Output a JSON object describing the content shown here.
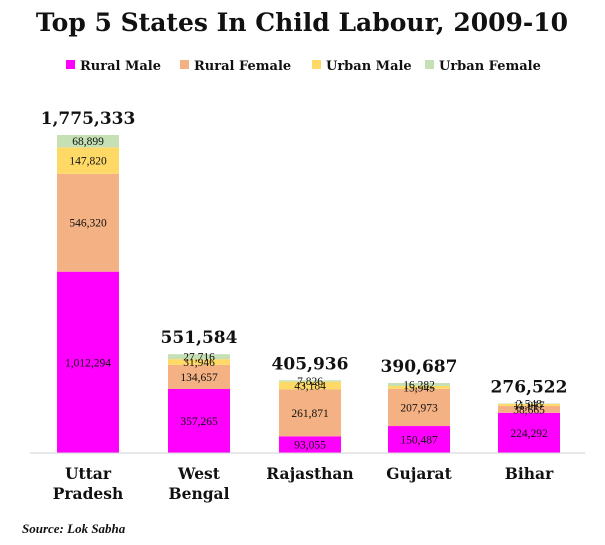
{
  "chart_data": {
    "type": "bar",
    "stacked": true,
    "title": "Top 5 States In Child Labour, 2009-10",
    "categories": [
      [
        "Uttar",
        "Pradesh"
      ],
      [
        "West",
        "Bengal"
      ],
      [
        "Rajasthan"
      ],
      [
        "Gujarat"
      ],
      [
        "Bihar"
      ]
    ],
    "series": [
      {
        "name": "Rural Male",
        "color": "#ff00ff",
        "values": [
          1012294,
          357265,
          93055,
          150487,
          224292
        ]
      },
      {
        "name": "Rural Female",
        "color": "#f4b183",
        "values": [
          546320,
          134657,
          261871,
          207973,
          38665
        ]
      },
      {
        "name": "Urban Male",
        "color": "#ffd966",
        "values": [
          147820,
          31946,
          43184,
          15945,
          11017
        ]
      },
      {
        "name": "Urban Female",
        "color": "#c5e0b4",
        "values": [
          68899,
          27716,
          7826,
          16282,
          2548
        ]
      }
    ],
    "segment_labels": [
      [
        "1,012,294",
        "546,320",
        "147,820",
        "68,899"
      ],
      [
        "357,265",
        "134,657",
        "31,946",
        "27,716"
      ],
      [
        "93,055",
        "261,871",
        "43,184",
        "7,826"
      ],
      [
        "150,487",
        "207,973",
        "15,945",
        "16,282"
      ],
      [
        "224,292",
        "38,665",
        "11,017",
        "2,548"
      ]
    ],
    "totals": [
      "1,775,333",
      "551,584",
      "405,936",
      "390,687",
      "276,522"
    ],
    "legend_position": "top",
    "ylim": [
      0,
      1775333
    ],
    "grid": false
  },
  "source": "Source: Lok Sabha"
}
